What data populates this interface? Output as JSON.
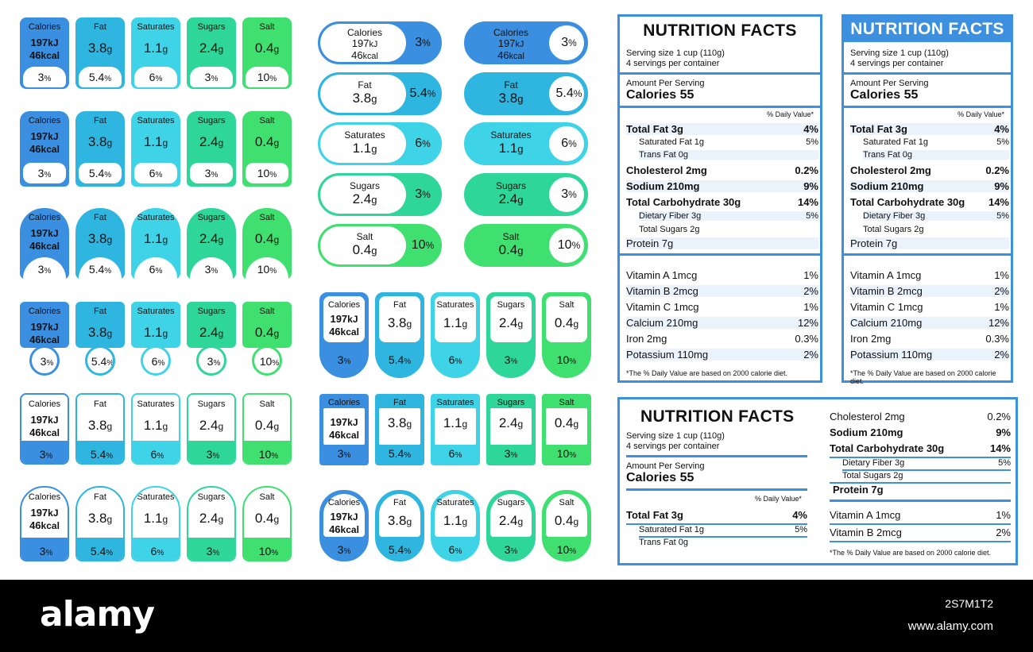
{
  "columns": [
    {
      "title": "Calories",
      "value": "197",
      "unit": "kJ",
      "value2": "46",
      "unit2": "kcal",
      "pct": "3",
      "color": "#3a8fe0"
    },
    {
      "title": "Fat",
      "value": "3.8",
      "unit": "g",
      "pct": "5.4",
      "color": "#2fb6e0"
    },
    {
      "title": "Saturates",
      "value": "1.1",
      "unit": "g",
      "pct": "6",
      "color": "#3fd3e8"
    },
    {
      "title": "Sugars",
      "value": "2.4",
      "unit": "g",
      "pct": "3",
      "color": "#2fd69a"
    },
    {
      "title": "Salt",
      "value": "0.4",
      "unit": "g",
      "pct": "10",
      "color": "#3fe070"
    }
  ],
  "pct_sign": "%",
  "panel": {
    "title": "NUTRITION FACTS",
    "serving_size": "Serving size 1 cup (110g)",
    "servings": "4 servings per container",
    "amount": "Amount Per Serving",
    "calories": "Calories 55",
    "daily_value": "% Daily Value*",
    "nutrients": [
      {
        "label": "Total Fat 3g",
        "pct": "4%",
        "level": "main"
      },
      {
        "label": "Saturated Fat 1g",
        "pct": "5%",
        "level": "sub"
      },
      {
        "label": "Trans Fat 0g",
        "pct": "",
        "level": "sub"
      },
      {
        "label": "Cholesterol 2mg",
        "pct": "0.2%",
        "level": "main"
      },
      {
        "label": "Sodium 210mg",
        "pct": "9%",
        "level": "main"
      },
      {
        "label": "Total Carbohydrate 30g",
        "pct": "14%",
        "level": "main"
      },
      {
        "label": "Dietary Fiber 3g",
        "pct": "5%",
        "level": "sub"
      },
      {
        "label": "Total Sugars 2g",
        "pct": "",
        "level": "sub"
      },
      {
        "label": "Protein 7g",
        "pct": "",
        "level": "main"
      }
    ],
    "vitamins": [
      {
        "label": "Vitamin A 1mcg",
        "pct": "1%"
      },
      {
        "label": "Vitamin B 2mcg",
        "pct": "2%"
      },
      {
        "label": "Vitamin C 1mcg",
        "pct": "1%"
      },
      {
        "label": "Calcium 210mg",
        "pct": "12%"
      },
      {
        "label": "Iron 2mg",
        "pct": "0.3%"
      },
      {
        "label": "Potassium 110mg",
        "pct": "2%"
      }
    ],
    "footnote": "*The % Daily Value are based on 2000 calorie diet."
  },
  "watermark": {
    "logo": "alamy",
    "image_id": "2S7M1T2",
    "url": "www.alamy.com"
  }
}
